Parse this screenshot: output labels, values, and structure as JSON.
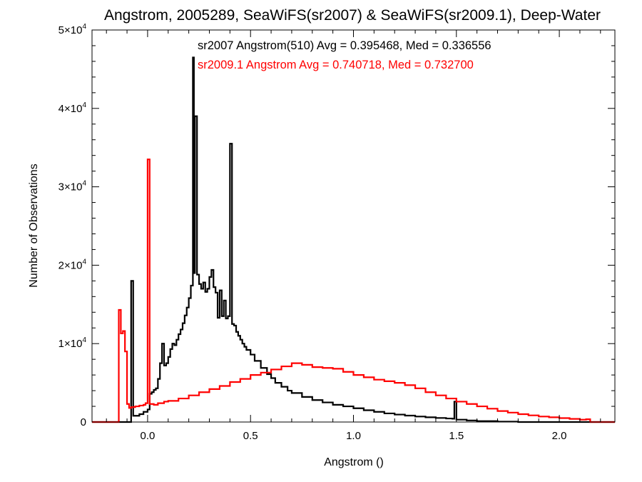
{
  "chart_data": {
    "type": "line",
    "title": "Angstrom, 2005289, SeaWiFS(sr2007) & SeaWiFS(sr2009.1), Deep-Water",
    "xlabel": "Angstrom ()",
    "ylabel": "Number of Observations",
    "xlim": [
      -0.27,
      2.27
    ],
    "ylim": [
      0,
      50000
    ],
    "x_ticks": [
      {
        "value": 0.0,
        "label": "0.0"
      },
      {
        "value": 0.5,
        "label": "0.5"
      },
      {
        "value": 1.0,
        "label": "1.0"
      },
      {
        "value": 1.5,
        "label": "1.5"
      },
      {
        "value": 2.0,
        "label": "2.0"
      }
    ],
    "y_ticks": [
      {
        "value": 0,
        "mantissa": "0",
        "exp": ""
      },
      {
        "value": 10000,
        "mantissa": "1×10",
        "exp": "4"
      },
      {
        "value": 20000,
        "mantissa": "2×10",
        "exp": "4"
      },
      {
        "value": 30000,
        "mantissa": "3×10",
        "exp": "4"
      },
      {
        "value": 40000,
        "mantissa": "4×10",
        "exp": "4"
      },
      {
        "value": 50000,
        "mantissa": "5×10",
        "exp": "4"
      }
    ],
    "annotations": [
      {
        "text": "sr2007 Angstrom(510) Avg = 0.395468, Med = 0.336556",
        "color": "#000000"
      },
      {
        "text": "sr2009.1 Angstrom Avg = 0.740718, Med = 0.732700",
        "color": "#ff0000"
      }
    ],
    "series": [
      {
        "color": "#000000",
        "points": [
          [
            -0.27,
            0
          ],
          [
            -0.08,
            0
          ],
          [
            -0.08,
            18000
          ],
          [
            -0.07,
            18000
          ],
          [
            -0.07,
            800
          ],
          [
            -0.05,
            800
          ],
          [
            -0.04,
            1000
          ],
          [
            -0.02,
            1300
          ],
          [
            0.0,
            1600
          ],
          [
            0.01,
            3600
          ],
          [
            0.02,
            3800
          ],
          [
            0.03,
            4100
          ],
          [
            0.04,
            4300
          ],
          [
            0.05,
            5500
          ],
          [
            0.06,
            7500
          ],
          [
            0.07,
            10000
          ],
          [
            0.08,
            7200
          ],
          [
            0.09,
            7500
          ],
          [
            0.1,
            8300
          ],
          [
            0.11,
            9300
          ],
          [
            0.12,
            10000
          ],
          [
            0.13,
            9800
          ],
          [
            0.14,
            10500
          ],
          [
            0.15,
            11200
          ],
          [
            0.16,
            11800
          ],
          [
            0.17,
            12600
          ],
          [
            0.18,
            13600
          ],
          [
            0.19,
            14600
          ],
          [
            0.2,
            15800
          ],
          [
            0.21,
            17400
          ],
          [
            0.22,
            46500
          ],
          [
            0.225,
            19000
          ],
          [
            0.23,
            39000
          ],
          [
            0.24,
            18800
          ],
          [
            0.25,
            17600
          ],
          [
            0.26,
            17000
          ],
          [
            0.27,
            17800
          ],
          [
            0.28,
            16600
          ],
          [
            0.29,
            17000
          ],
          [
            0.3,
            18500
          ],
          [
            0.31,
            19400
          ],
          [
            0.32,
            17200
          ],
          [
            0.33,
            16500
          ],
          [
            0.34,
            13300
          ],
          [
            0.35,
            16800
          ],
          [
            0.36,
            13500
          ],
          [
            0.37,
            15500
          ],
          [
            0.38,
            13200
          ],
          [
            0.39,
            13500
          ],
          [
            0.4,
            35500
          ],
          [
            0.41,
            12500
          ],
          [
            0.42,
            12300
          ],
          [
            0.43,
            11500
          ],
          [
            0.44,
            11000
          ],
          [
            0.45,
            10500
          ],
          [
            0.46,
            10000
          ],
          [
            0.47,
            9600
          ],
          [
            0.48,
            9200
          ],
          [
            0.5,
            8600
          ],
          [
            0.52,
            7800
          ],
          [
            0.55,
            6900
          ],
          [
            0.58,
            6100
          ],
          [
            0.6,
            5600
          ],
          [
            0.62,
            5000
          ],
          [
            0.65,
            4500
          ],
          [
            0.68,
            4000
          ],
          [
            0.7,
            3700
          ],
          [
            0.75,
            3200
          ],
          [
            0.8,
            2800
          ],
          [
            0.85,
            2500
          ],
          [
            0.9,
            2200
          ],
          [
            0.95,
            2000
          ],
          [
            1.0,
            1750
          ],
          [
            1.05,
            1500
          ],
          [
            1.1,
            1300
          ],
          [
            1.15,
            1100
          ],
          [
            1.2,
            950
          ],
          [
            1.25,
            820
          ],
          [
            1.3,
            700
          ],
          [
            1.35,
            600
          ],
          [
            1.4,
            520
          ],
          [
            1.45,
            450
          ],
          [
            1.48,
            420
          ],
          [
            1.49,
            2600
          ],
          [
            1.5,
            300
          ],
          [
            1.55,
            200
          ],
          [
            1.6,
            120
          ],
          [
            1.7,
            50
          ],
          [
            1.8,
            0
          ],
          [
            2.27,
            0
          ]
        ]
      },
      {
        "color": "#ff0000",
        "points": [
          [
            -0.27,
            0
          ],
          [
            -0.15,
            0
          ],
          [
            -0.14,
            14300
          ],
          [
            -0.13,
            11300
          ],
          [
            -0.12,
            11600
          ],
          [
            -0.11,
            9000
          ],
          [
            -0.1,
            2300
          ],
          [
            -0.09,
            1800
          ],
          [
            -0.08,
            1900
          ],
          [
            -0.06,
            2000
          ],
          [
            -0.04,
            2100
          ],
          [
            -0.02,
            2200
          ],
          [
            -0.01,
            2400
          ],
          [
            0.0,
            33500
          ],
          [
            0.01,
            2300
          ],
          [
            0.03,
            2200
          ],
          [
            0.05,
            2400
          ],
          [
            0.08,
            2600
          ],
          [
            0.1,
            2700
          ],
          [
            0.15,
            3000
          ],
          [
            0.2,
            3400
          ],
          [
            0.25,
            3800
          ],
          [
            0.3,
            4200
          ],
          [
            0.35,
            4600
          ],
          [
            0.4,
            5100
          ],
          [
            0.45,
            5500
          ],
          [
            0.5,
            6000
          ],
          [
            0.55,
            6300
          ],
          [
            0.6,
            6700
          ],
          [
            0.65,
            7100
          ],
          [
            0.7,
            7500
          ],
          [
            0.75,
            7300
          ],
          [
            0.8,
            7000
          ],
          [
            0.85,
            6900
          ],
          [
            0.9,
            6800
          ],
          [
            0.95,
            6400
          ],
          [
            1.0,
            6000
          ],
          [
            1.05,
            5700
          ],
          [
            1.1,
            5400
          ],
          [
            1.15,
            5200
          ],
          [
            1.2,
            5000
          ],
          [
            1.25,
            4700
          ],
          [
            1.3,
            4300
          ],
          [
            1.35,
            3800
          ],
          [
            1.4,
            3400
          ],
          [
            1.45,
            3000
          ],
          [
            1.5,
            2600
          ],
          [
            1.55,
            2300
          ],
          [
            1.6,
            2000
          ],
          [
            1.65,
            1700
          ],
          [
            1.7,
            1400
          ],
          [
            1.75,
            1200
          ],
          [
            1.8,
            1000
          ],
          [
            1.85,
            850
          ],
          [
            1.9,
            700
          ],
          [
            1.95,
            600
          ],
          [
            2.0,
            500
          ],
          [
            2.05,
            400
          ],
          [
            2.1,
            300
          ],
          [
            2.13,
            350
          ],
          [
            2.15,
            0
          ],
          [
            2.27,
            0
          ]
        ]
      }
    ]
  }
}
